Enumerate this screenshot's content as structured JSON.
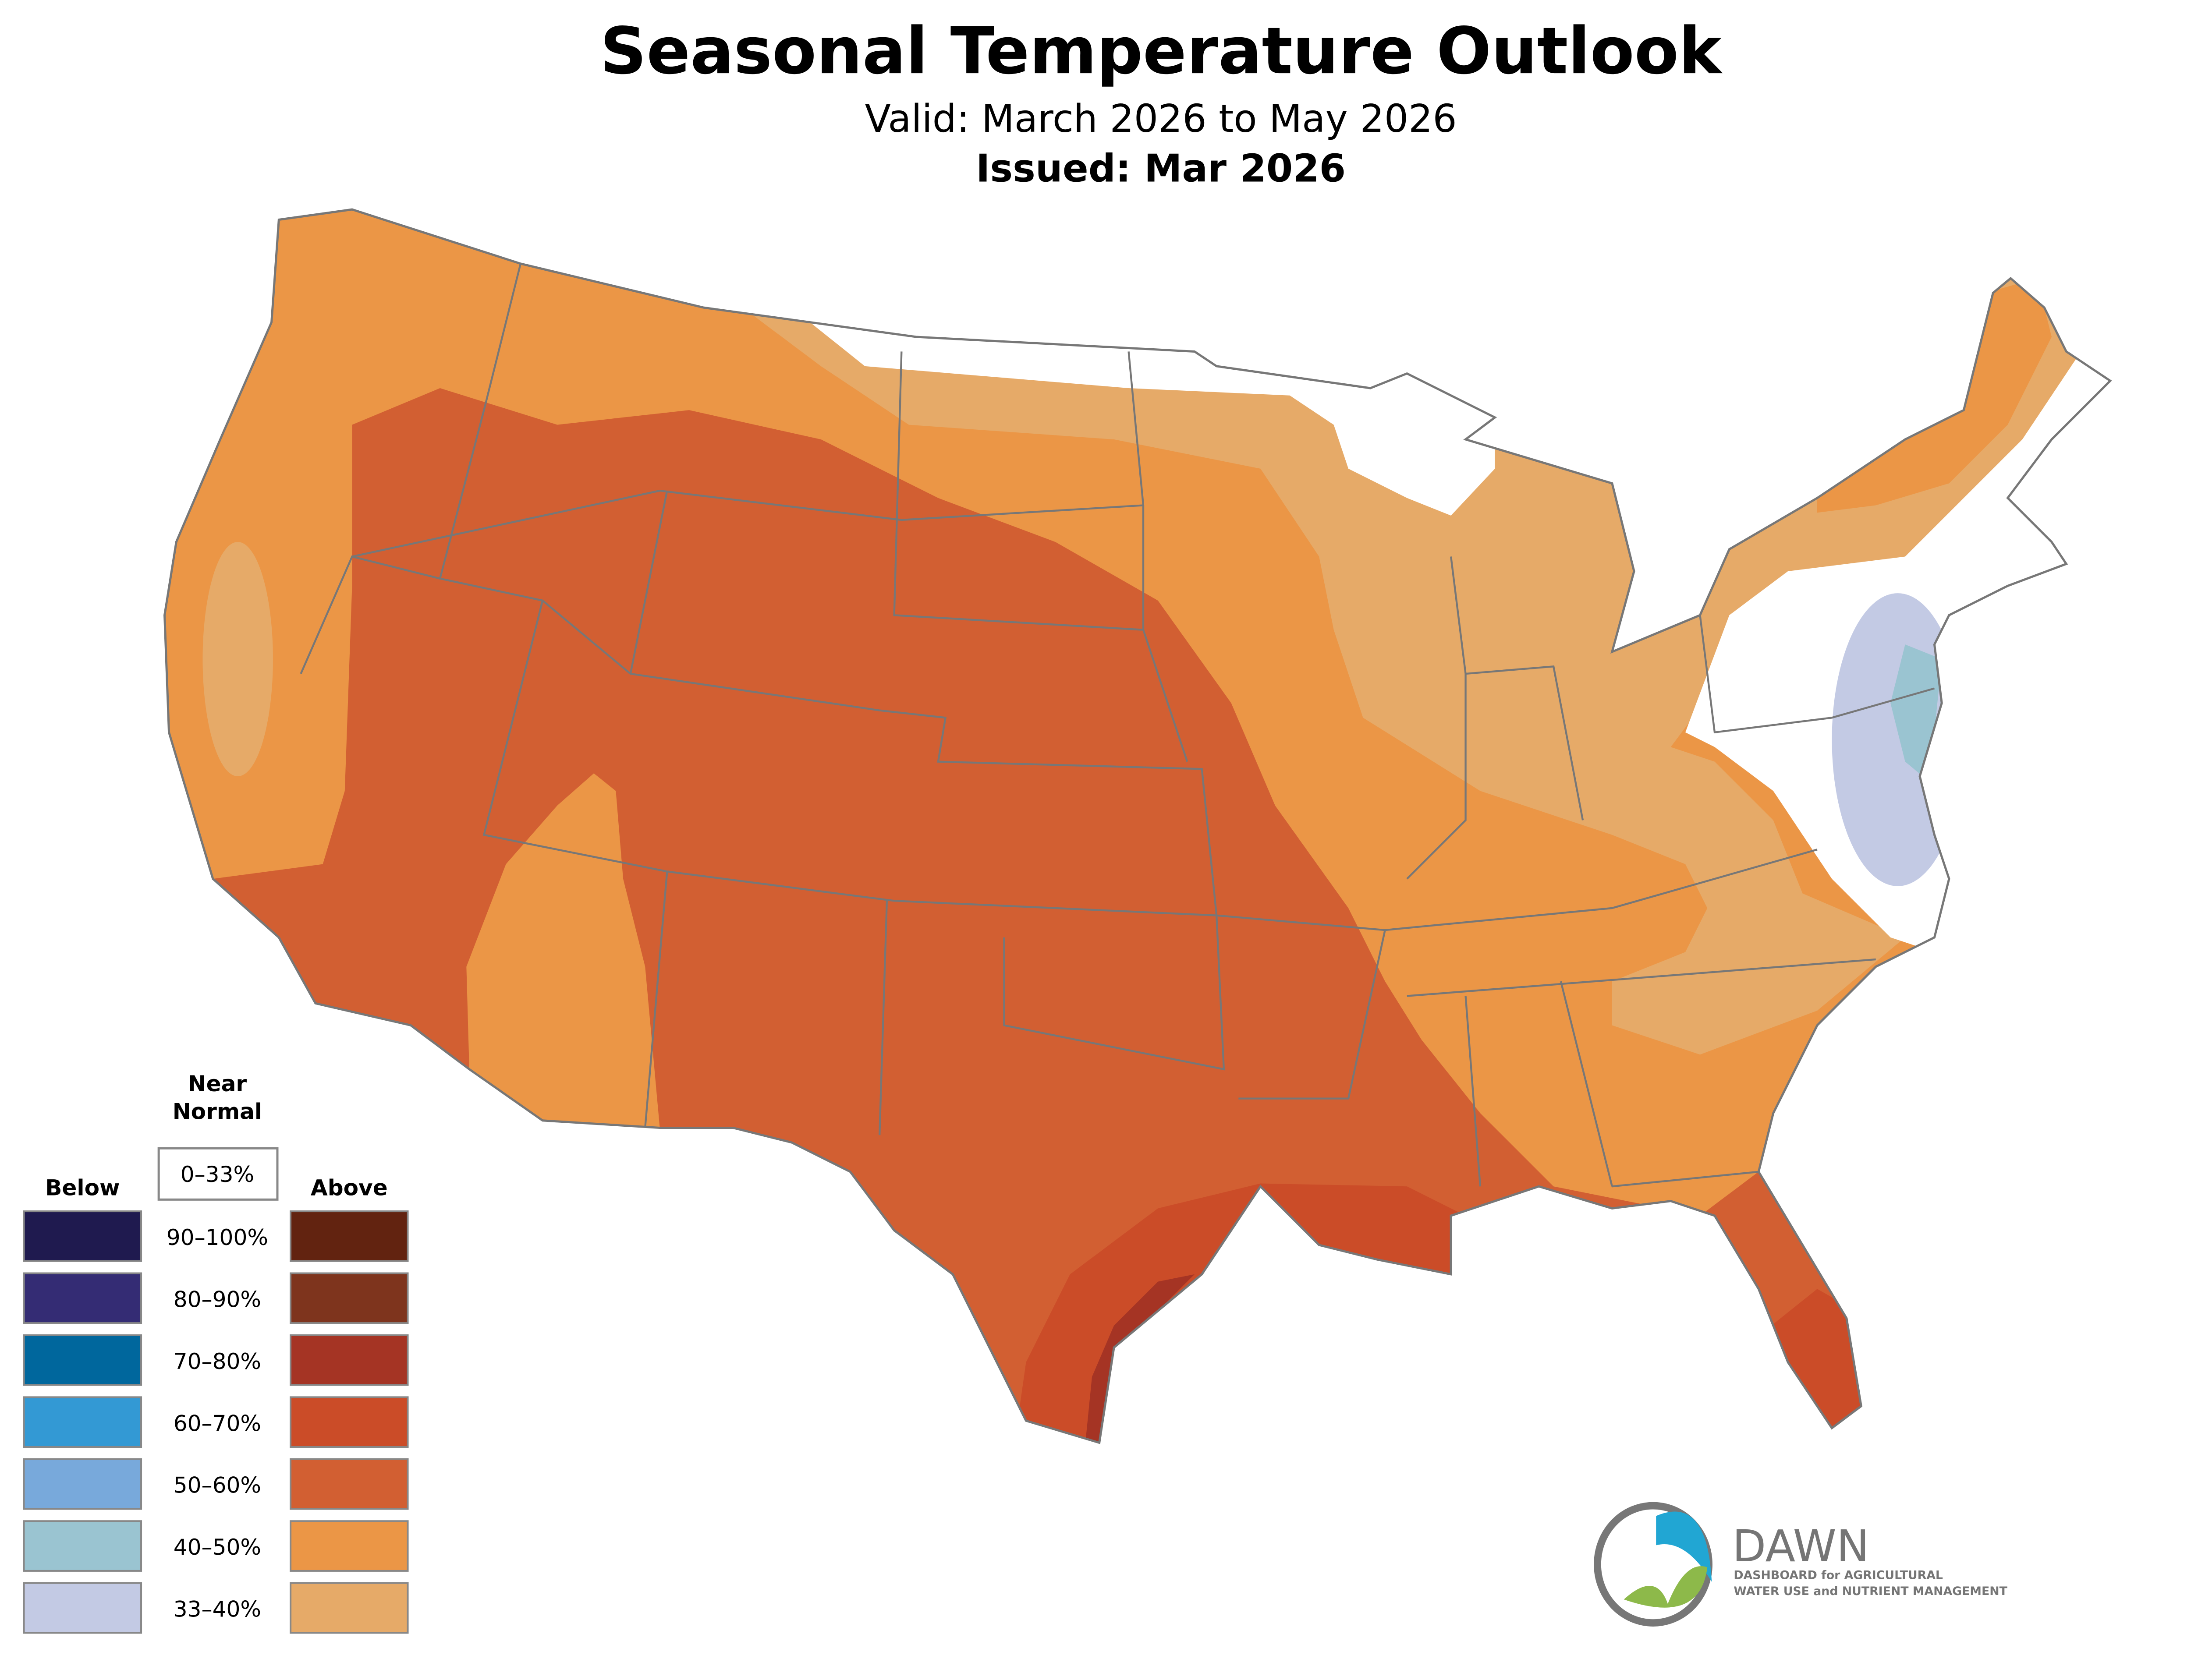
{
  "header": {
    "title": "Seasonal Temperature Outlook",
    "valid": "Valid: March 2026 to May 2026",
    "issued": "Issued: Mar 2026"
  },
  "legend": {
    "near_normal_label_line1": "Near",
    "near_normal_label_line2": "Normal",
    "near_normal_range": "0–33%",
    "below_label": "Below",
    "above_label": "Above",
    "rows": [
      {
        "range": "90–100%",
        "below_color": "#1f1a4f",
        "above_color": "#622310"
      },
      {
        "range": "80–90%",
        "below_color": "#342c74",
        "above_color": "#7e341d"
      },
      {
        "range": "70–80%",
        "below_color": "#00679d",
        "above_color": "#a53424"
      },
      {
        "range": "60–70%",
        "below_color": "#3399d4",
        "above_color": "#cb4c28"
      },
      {
        "range": "50–60%",
        "below_color": "#78a9db",
        "above_color": "#d25f32"
      },
      {
        "range": "40–50%",
        "below_color": "#9ac4d1",
        "above_color": "#eb9646"
      },
      {
        "range": "33–40%",
        "below_color": "#c3cae4",
        "above_color": "#e6aa68"
      }
    ]
  },
  "logo": {
    "name": "DAWN",
    "tagline_line1": "DASHBOARD for AGRICULTURAL",
    "tagline_line2": "WATER USE and NUTRIENT MANAGEMENT"
  }
}
